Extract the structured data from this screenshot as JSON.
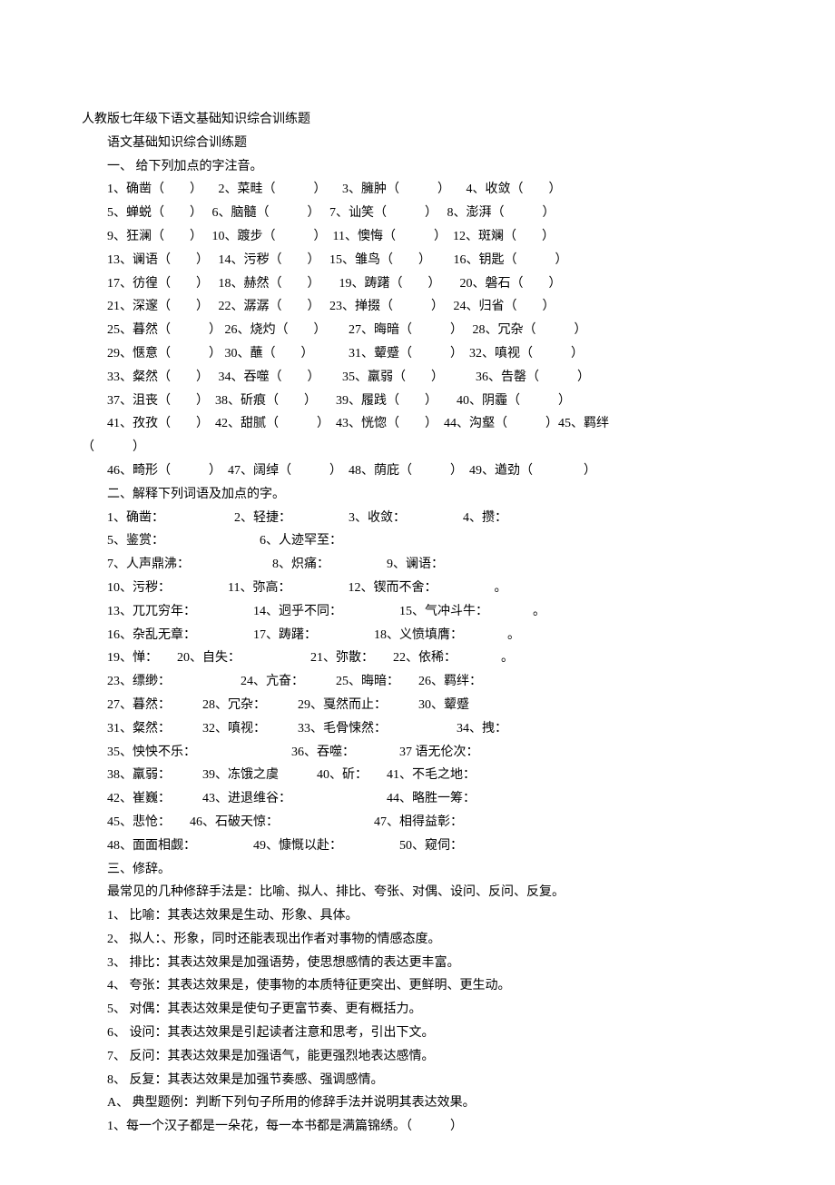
{
  "font": {
    "family": "SimSun",
    "size_pt": 10.5,
    "color": "#000000"
  },
  "background_color": "#ffffff",
  "title": "人教版七年级下语文基础知识综合训练题",
  "subtitle": "语文基础知识综合训练题",
  "section1": {
    "heading": "一、 给下列加点的字注音。",
    "row1": "1、确凿（　　） 　2、菜畦（　　　） 　3、臃肿（　　　） 　4、收敛（　　）",
    "row2": "5、蝉蜕（　　）　 6、脑髓（　　　）　 7、讪笑（　　　）　 8、澎湃（　　　）",
    "row3": "9、狂澜（　　）　 10、踱步（　　　）　11、懊悔（　　　）　12、斑斓（　　）",
    "row4": "13、谰语（　　）　 14、污秽（　　）　 15、雏鸟（　　）　　 16、钥匙（　　　）",
    "row5": "17、彷徨（　　）　 18、赫然（　　）　　19、踌躇（　　）　　20、磐石（　　）",
    "row6": "21、深邃（　　）　 22、潺潺（　　）　 23、掸掇（　　　）　 24、归省（　　）",
    "row7": "25、暮然（　　　） 26、烧灼（　　）　　 27、晦暗（　　　）　 28、冗杂（　　　）",
    "row8": "29、惬意（　　　） 30、蘸（　　）　　　 31、颦蹙（　　　）　32、嗔视（　　　）",
    "row9": "33、粲然（　　）　 34、吞噬（　　）　　 35、羸弱（　　）　　　36、告罄（　　　）",
    "row10": "37、沮丧（　　）　38、斫痕（　　）　　39、履践（　　）　　40、阴霾（　　　）",
    "row11": "41、孜孜（　　）　42、甜腻（　　　）　43、恍惚（　　）　44、沟壑（　　　）45、羁绊",
    "row11b": "（　　　）",
    "row12": "46、畸形（　　　）　47、阔绰（　　　）　48、荫庇（　　　）　49、遒劲（　　　　）"
  },
  "section2": {
    "heading": "二、解释下列词语及加点的字。",
    "row1": "1、确凿：　　　　　　2、轻捷：　　　　　3、收敛：　　　　　4、攒：",
    "row2": "5、鉴赏：　　　　　　　　6、人迹罕至：",
    "row3": "7、人声鼎沸：　　　　　　　8、炽痛：　　　　　9、谰语：",
    "row4": "10、污秽：　　　　　11、弥高：　　　　　12、锲而不舍：　　　　　。",
    "row5": "13、兀兀穷年：　　　　　14、迥乎不同：　　　　　15、气冲斗牛：　　　　。",
    "row6": "16、杂乱无章：　　　　　17、踌躇：　　　　　18、义愤填膺：　　　　。",
    "row7": "19、惮：　　20、自失：　　　　　　21、弥散：　　22、依稀：　　　　。",
    "row8": "23、缥缈：　　　　　　24、亢奋：　　　25、晦暗：　　26、羁绊：",
    "row9": "27、暮然：　　　28、冗杂：　　　29、戛然而止：　　　30、颦蹙",
    "row10": "31、粲然：　　　32、嗔视：　　　33、毛骨悚然：　　　　　　34、拽：",
    "row11": "35、怏怏不乐：　　　　　　　　36、吞噬：　　　　37 语无伦次：",
    "row12": "38、羸弱：　　　39、冻饿之虞　　　40、斫：　　41、不毛之地：",
    "row13": "42、崔巍：　　　43、进退维谷：　　　　　　　　44、略胜一筹：",
    "row14": "45、悲怆：　　46、石破天惊：　　　　　　　　47、相得益彰：",
    "row15": "48、面面相觑：　　　　　49、慷慨以赴：　　　　　50、窥伺："
  },
  "section3": {
    "heading": "三、修辞。",
    "intro": "最常见的几种修辞手法是：比喻、拟人、排比、夸张、对偶、设问、反问、反复。",
    "item1": "1、 比喻：其表达效果是生动、形象、具体。",
    "item2": "2、 拟人：、形象，同时还能表现出作者对事物的情感态度。",
    "item3": "3、 排比：其表达效果是加强语势，使思想感情的表达更丰富。",
    "item4": "4、 夸张：其表达效果是，使事物的本质特征更突出、更鲜明、更生动。",
    "item5": "5、 对偶：其表达效果是使句子更富节奏、更有概括力。",
    "item6": "6、 设问：其表达效果是引起读者注意和思考，引出下文。",
    "item7": "7、 反问：其表达效果是加强语气，能更强烈地表达感情。",
    "item8": "8、 反复：其表达效果是加强节奏感、强调感情。",
    "example_heading": "A、 典型题例：判断下列句子所用的修辞手法并说明其表达效果。",
    "example1": "1、每一个汉子都是一朵花，每一本书都是满篇锦绣。（　　　）"
  }
}
